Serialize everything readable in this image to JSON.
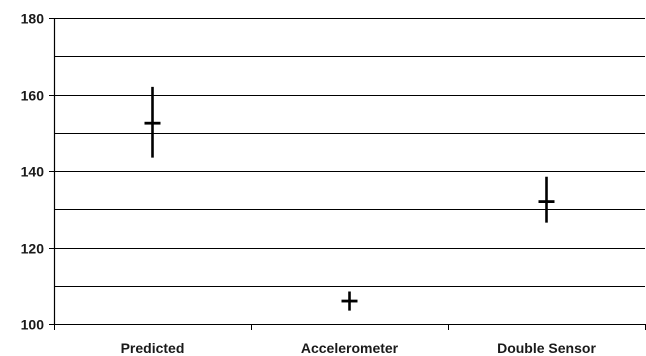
{
  "chart_data": {
    "type": "scatter",
    "title": "",
    "xlabel": "",
    "ylabel": "",
    "ylim": [
      100,
      180
    ],
    "y_ticks": [
      100,
      120,
      140,
      160,
      180
    ],
    "y_tick_labels": [
      "100",
      "120",
      "140",
      "160",
      "180"
    ],
    "gridlines": [
      100,
      110,
      120,
      130,
      140,
      150,
      160,
      170,
      180
    ],
    "grid": true,
    "legend": "none",
    "categories": [
      "Predicted",
      "Accelerometer",
      "Double Sensor"
    ],
    "series": [
      {
        "values": [
          152.5,
          106,
          132
        ],
        "error_low": [
          143.5,
          103.5,
          126.5
        ],
        "error_high": [
          162,
          108.5,
          138.5
        ]
      }
    ],
    "colors": {
      "marker": "#000000",
      "grid": "#000000",
      "axis": "#000000"
    }
  }
}
